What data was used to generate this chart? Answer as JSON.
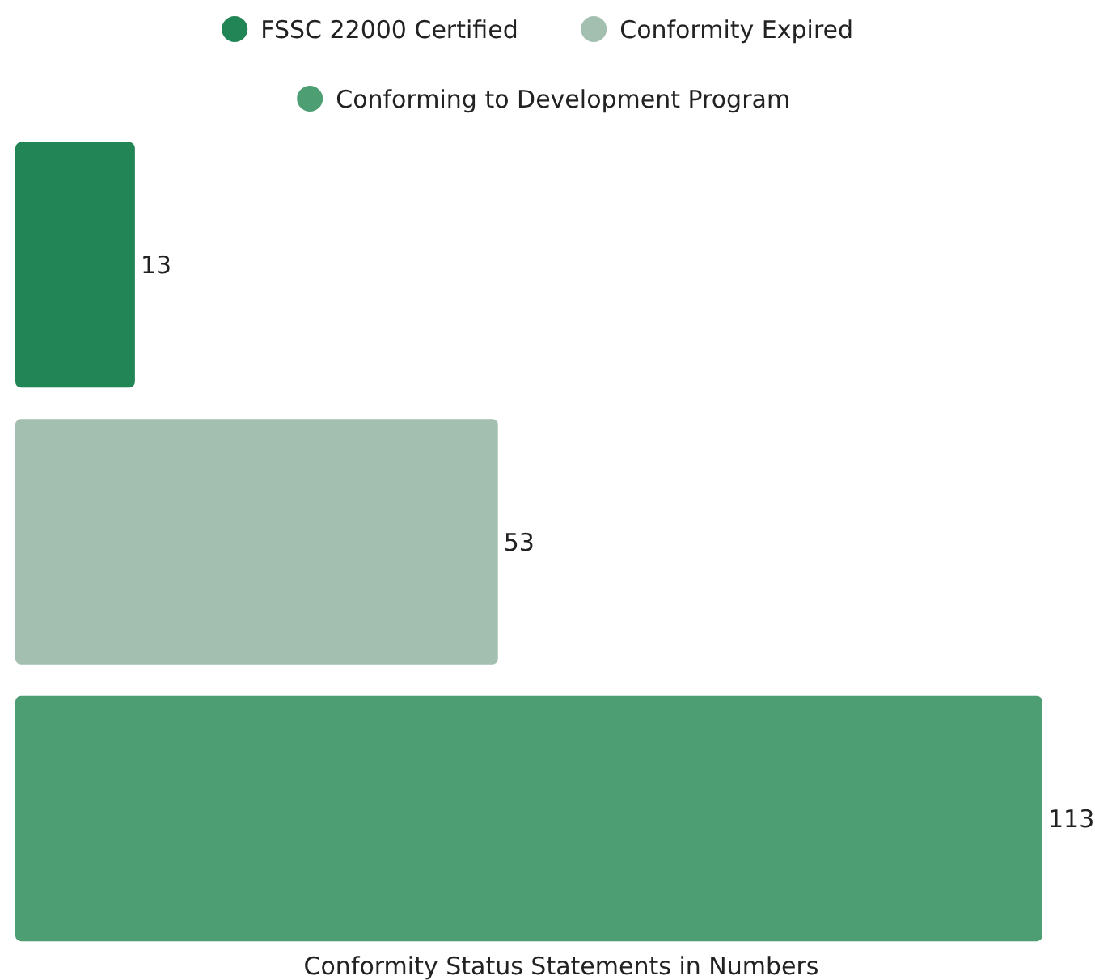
{
  "chart_data": {
    "type": "bar",
    "orientation": "horizontal",
    "xlabel": "Conformity Status Statements in Numbers",
    "categories": [
      null
    ],
    "series": [
      {
        "name": "FSSC 22000 Certified",
        "color": "#218556",
        "values": [
          13
        ]
      },
      {
        "name": "Conformity Expired",
        "color": "#a3bfb0",
        "values": [
          53
        ]
      },
      {
        "name": "Conforming to Development Program",
        "color": "#4e9e74",
        "values": [
          113
        ]
      }
    ],
    "data_labels": true,
    "legend": "top"
  }
}
